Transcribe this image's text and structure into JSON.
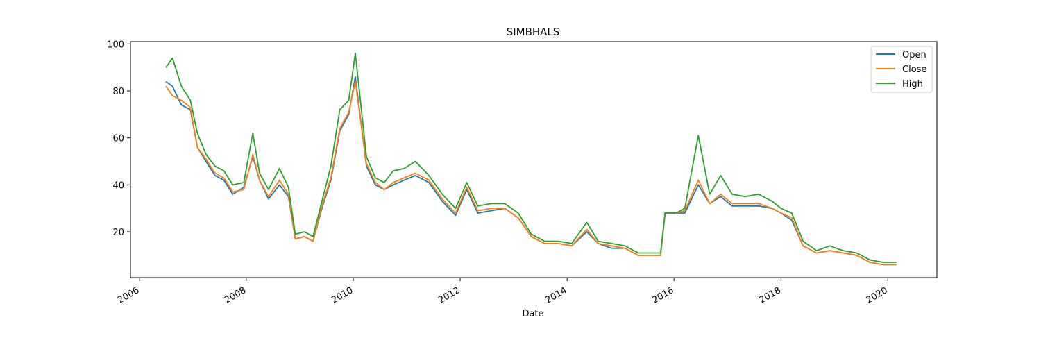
{
  "chart_data": {
    "type": "line",
    "title": "SIMBHALS",
    "xlabel": "Date",
    "ylabel": "",
    "xlim": [
      "2005-11-01",
      "2020-12-01"
    ],
    "ylim": [
      0.5,
      101
    ],
    "x_ticks": [
      "2006",
      "2008",
      "2010",
      "2012",
      "2014",
      "2016",
      "2018",
      "2020"
    ],
    "y_ticks": [
      20,
      40,
      60,
      80,
      100
    ],
    "grid": false,
    "legend_position": "upper right",
    "x": [
      "2006-07-01",
      "2006-08-15",
      "2006-10-15",
      "2006-12-15",
      "2007-02-01",
      "2007-04-01",
      "2007-06-01",
      "2007-08-01",
      "2007-10-01",
      "2007-12-15",
      "2008-02-15",
      "2008-04-01",
      "2008-06-01",
      "2008-08-15",
      "2008-10-15",
      "2008-12-01",
      "2009-02-01",
      "2009-04-01",
      "2009-06-01",
      "2009-08-01",
      "2009-10-01",
      "2009-12-01",
      "2010-01-15",
      "2010-04-01",
      "2010-06-01",
      "2010-08-01",
      "2010-10-01",
      "2010-12-15",
      "2011-03-01",
      "2011-06-01",
      "2011-09-01",
      "2011-12-01",
      "2012-02-15",
      "2012-05-01",
      "2012-08-01",
      "2012-11-01",
      "2013-02-01",
      "2013-05-01",
      "2013-08-01",
      "2013-11-01",
      "2014-02-01",
      "2014-05-15",
      "2014-08-01",
      "2014-11-01",
      "2015-02-01",
      "2015-05-01",
      "2015-08-01",
      "2015-10-01",
      "2015-11-01",
      "2016-01-15",
      "2016-03-15",
      "2016-06-15",
      "2016-09-01",
      "2016-11-15",
      "2017-02-01",
      "2017-05-01",
      "2017-08-01",
      "2017-11-01",
      "2018-01-01",
      "2018-03-15",
      "2018-06-01",
      "2018-09-01",
      "2018-12-01",
      "2019-03-01",
      "2019-06-01",
      "2019-09-01",
      "2019-12-01",
      "2020-02-28"
    ],
    "series": [
      {
        "name": "Open",
        "color": "#1f77b4",
        "values": [
          84,
          82,
          74,
          72,
          56,
          50,
          44,
          42,
          36,
          39,
          52,
          42,
          34,
          40,
          35,
          17,
          18,
          16,
          30,
          42,
          63,
          70,
          86,
          48,
          40,
          38,
          40,
          42,
          44,
          41,
          33,
          27,
          38,
          28,
          29,
          30,
          26,
          18,
          15,
          15,
          14,
          20,
          15,
          13,
          13,
          10,
          10,
          10,
          28,
          28,
          28,
          40,
          32,
          35,
          31,
          31,
          31,
          30,
          28,
          25,
          14,
          11,
          12,
          11,
          10,
          7,
          6,
          6
        ]
      },
      {
        "name": "Close",
        "color": "#ff7f0e",
        "values": [
          82,
          78,
          76,
          73,
          56,
          51,
          45,
          43,
          37,
          38,
          53,
          42,
          35,
          42,
          36,
          17,
          18,
          16,
          31,
          43,
          64,
          71,
          84,
          49,
          41,
          38,
          41,
          43,
          45,
          42,
          34,
          28,
          39,
          29,
          30,
          30,
          26,
          18,
          15,
          15,
          14,
          21,
          15,
          14,
          13,
          10,
          10,
          10,
          28,
          28,
          29,
          42,
          32,
          36,
          32,
          32,
          32,
          30,
          28,
          26,
          14,
          11,
          12,
          11,
          10,
          7,
          6,
          6
        ]
      },
      {
        "name": "High",
        "color": "#2ca02c",
        "values": [
          90,
          94,
          82,
          76,
          62,
          53,
          48,
          46,
          40,
          41,
          62,
          45,
          38,
          47,
          39,
          19,
          20,
          18,
          33,
          48,
          72,
          76,
          96,
          52,
          43,
          41,
          46,
          47,
          50,
          44,
          36,
          30,
          41,
          31,
          32,
          32,
          28,
          19,
          16,
          16,
          15,
          24,
          16,
          15,
          14,
          11,
          11,
          11,
          28,
          28,
          30,
          61,
          36,
          44,
          36,
          35,
          36,
          33,
          30,
          28,
          16,
          12,
          14,
          12,
          11,
          8,
          7,
          7
        ]
      }
    ]
  }
}
